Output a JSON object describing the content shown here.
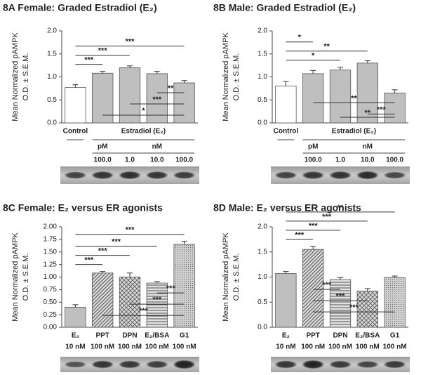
{
  "chart_data": [
    {
      "type": "bar",
      "title": "8A  Female:  Graded Estradiol (E₂)",
      "y_label": [
        "Mean Normalized pAMPK",
        "O.D. ± S.E.M."
      ],
      "categories": [
        "Control",
        null,
        null,
        null,
        null
      ],
      "group_label": "Estradiol (E₂)",
      "units": [
        "pM",
        "nM"
      ],
      "doses": [
        null,
        "100.0",
        "1.0",
        "10.0",
        "100.0"
      ],
      "values": [
        0.77,
        1.08,
        1.2,
        1.07,
        0.87
      ],
      "errors": [
        0.06,
        0.04,
        0.04,
        0.05,
        0.05
      ],
      "colors": [
        "#ffffff",
        "#bfbfbf",
        "#bfbfbf",
        "#bfbfbf",
        "#bfbfbf"
      ],
      "patterns": [
        "solid",
        "solid",
        "solid",
        "solid",
        "solid"
      ],
      "ylim": [
        0,
        2
      ],
      "yticks": [
        {
          "value": 0,
          "label": "0.0"
        },
        {
          "value": 0.5,
          "label": "0.5"
        },
        {
          "value": 1,
          "label": "1.0"
        },
        {
          "value": 1.5,
          "label": "1.5"
        },
        {
          "value": 2,
          "label": "2.0"
        }
      ],
      "significance": [
        {
          "from": 0,
          "to": 1,
          "label": "***"
        },
        {
          "from": 0,
          "to": 2,
          "label": "***"
        },
        {
          "from": 0,
          "to": 4,
          "label": "***"
        },
        {
          "from": 3,
          "to": 4,
          "label": "**"
        },
        {
          "from": 2,
          "to": 4,
          "label": "***"
        },
        {
          "from": 1,
          "to": 4,
          "label": "*"
        }
      ]
    },
    {
      "type": "bar",
      "title": "8B  Male:  Graded Estradiol (E₂)",
      "y_label": [
        "Mean Normalized pAMPK",
        "O.D. ± S.E.M."
      ],
      "categories": [
        "Control",
        null,
        null,
        null,
        null
      ],
      "group_label": "Estradiol (E₂)",
      "units": [
        "pM",
        "nM"
      ],
      "doses": [
        null,
        "100.0",
        "1.0",
        "10.0",
        "100.0"
      ],
      "values": [
        0.8,
        1.07,
        1.15,
        1.3,
        0.65
      ],
      "errors": [
        0.1,
        0.07,
        0.06,
        0.05,
        0.07
      ],
      "colors": [
        "#ffffff",
        "#bfbfbf",
        "#bfbfbf",
        "#bfbfbf",
        "#bfbfbf"
      ],
      "patterns": [
        "solid",
        "solid",
        "solid",
        "solid",
        "solid"
      ],
      "ylim": [
        0,
        2
      ],
      "yticks": [
        {
          "value": 0,
          "label": "0.0"
        },
        {
          "value": 0.5,
          "label": "0.5"
        },
        {
          "value": 1,
          "label": "1.0"
        },
        {
          "value": 1.5,
          "label": "1.5"
        },
        {
          "value": 2,
          "label": "2.0"
        }
      ],
      "significance": [
        {
          "from": 0,
          "to": 2,
          "label": "*"
        },
        {
          "from": 0,
          "to": 3,
          "label": "**"
        },
        {
          "from": 1,
          "to": 4,
          "label": "**"
        },
        {
          "from": 3,
          "to": 4,
          "label": "***"
        },
        {
          "from": 2,
          "to": 4,
          "label": "**"
        },
        {
          "from": 0,
          "to": 1,
          "label": "*"
        }
      ]
    },
    {
      "type": "bar",
      "title": "8C  Female:  E₂  versus  ER agonists",
      "y_label": [
        "Mean Normalized pAMPK",
        "O.D. ± S.E.M."
      ],
      "categories": [
        "E₂",
        "PPT",
        "DPN",
        "E₂/BSA",
        "G1"
      ],
      "doses": [
        "10 nM",
        "100 nM",
        "100 nM",
        "100 nM",
        "100 nM"
      ],
      "values": [
        0.4,
        1.08,
        1.0,
        0.88,
        1.65
      ],
      "errors": [
        0.05,
        0.03,
        0.08,
        0.03,
        0.06
      ],
      "colors": [
        "#bfbfbf",
        "#bfbfbf",
        "#bfbfbf",
        "#bfbfbf",
        "#bfbfbf"
      ],
      "patterns": [
        "solid",
        "diagonal",
        "crosshatch",
        "horizontal",
        "dots"
      ],
      "ylim": [
        0,
        2
      ],
      "yticks": [
        {
          "value": 0,
          "label": "0.00"
        },
        {
          "value": 0.25,
          "label": "0.25"
        },
        {
          "value": 0.5,
          "label": "0.50"
        },
        {
          "value": 0.75,
          "label": "0.75"
        },
        {
          "value": 1,
          "label": "1.00"
        },
        {
          "value": 1.25,
          "label": "1.25"
        },
        {
          "value": 1.5,
          "label": "1.50"
        },
        {
          "value": 1.75,
          "label": "1.75"
        },
        {
          "value": 2,
          "label": "2.00"
        }
      ],
      "significance": [
        {
          "from": 0,
          "to": 1,
          "label": "***"
        },
        {
          "from": 0,
          "to": 2,
          "label": "***"
        },
        {
          "from": 0,
          "to": 3,
          "label": "***"
        },
        {
          "from": 0,
          "to": 4,
          "label": "***"
        },
        {
          "from": 3,
          "to": 4,
          "label": "***"
        },
        {
          "from": 2,
          "to": 4,
          "label": "***"
        },
        {
          "from": 1,
          "to": 4,
          "label": "***"
        }
      ]
    },
    {
      "type": "bar",
      "title": "8D  Male:  E₂  versus  ER agonists",
      "y_label": [
        "Mean Normalized pAMPK",
        "O.D. ± S.E.M."
      ],
      "categories": [
        "E₂",
        "PPT",
        "DPN",
        "E₂/BSA",
        "G1"
      ],
      "doses": [
        "10 nM",
        "100 nM",
        "100 nM",
        "100 nM",
        "100 nM"
      ],
      "values": [
        1.07,
        1.55,
        0.95,
        0.72,
        0.99
      ],
      "errors": [
        0.04,
        0.06,
        0.04,
        0.05,
        0.03
      ],
      "colors": [
        "#bfbfbf",
        "#bfbfbf",
        "#bfbfbf",
        "#bfbfbf",
        "#bfbfbf"
      ],
      "patterns": [
        "solid",
        "diagonal",
        "horizontal",
        "crosshatch",
        "dots"
      ],
      "ylim": [
        0,
        2
      ],
      "yticks": [
        {
          "value": 0,
          "label": "0.0"
        },
        {
          "value": 0.5,
          "label": "0.5"
        },
        {
          "value": 1,
          "label": "1.0"
        },
        {
          "value": 1.5,
          "label": "1.5"
        },
        {
          "value": 2,
          "label": "2.0"
        }
      ],
      "significance": [
        {
          "from": 0,
          "to": 1,
          "label": "***"
        },
        {
          "from": 0,
          "to": 2,
          "label": "***"
        },
        {
          "from": 0,
          "to": 3,
          "label": "***"
        },
        {
          "from": 1,
          "to": 2,
          "label": "***"
        },
        {
          "from": 1,
          "to": 3,
          "label": "***"
        },
        {
          "from": 1,
          "to": 4,
          "label": "***"
        },
        {
          "from": 0,
          "to": 4,
          "label": "**"
        }
      ]
    }
  ]
}
